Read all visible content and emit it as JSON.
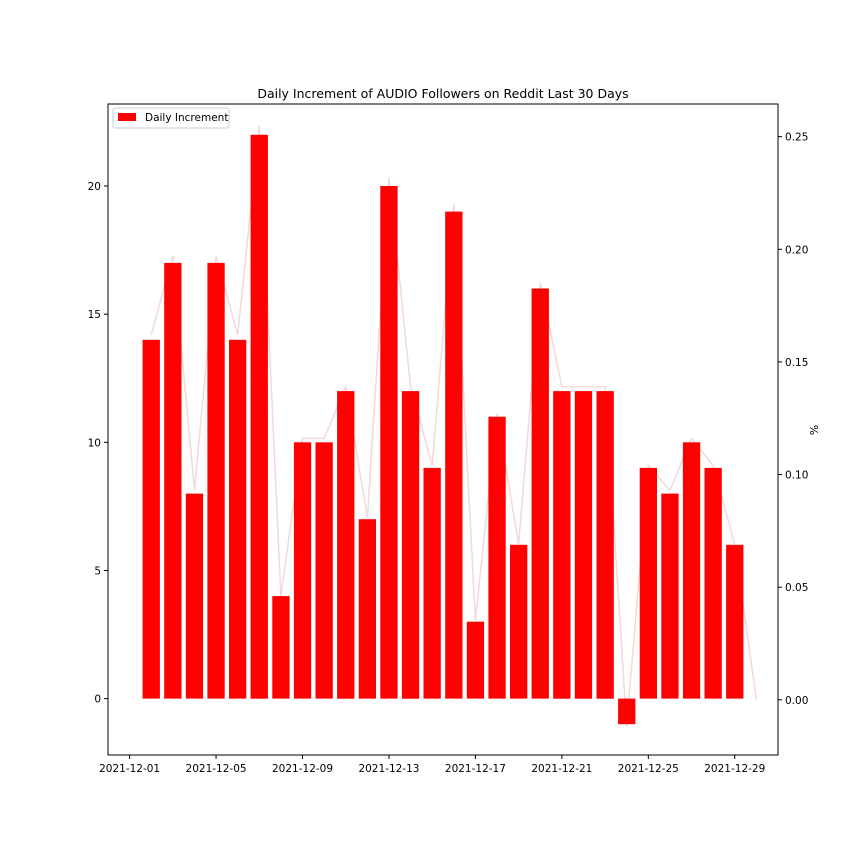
{
  "chart_data": {
    "type": "bar",
    "title": "Daily Increment of AUDIO Followers on Reddit Last 30 Days",
    "xlabel": "",
    "ylabel": "",
    "y2label": "%",
    "legend": {
      "placement": "top-left",
      "entries": [
        "Daily Increment"
      ]
    },
    "grid": false,
    "x_range": [
      "2021-11-30",
      "2021-12-31"
    ],
    "ylim": [
      -2.2,
      23.2
    ],
    "y2lim": [
      -0.0245,
      0.2645
    ],
    "yticks": [
      0,
      5,
      10,
      15,
      20
    ],
    "y2ticks": [
      "0.00",
      "0.05",
      "0.10",
      "0.15",
      "0.20",
      "0.25"
    ],
    "xticks": [
      "2021-12-01",
      "2021-12-05",
      "2021-12-09",
      "2021-12-13",
      "2021-12-17",
      "2021-12-21",
      "2021-12-25",
      "2021-12-29"
    ],
    "series": [
      {
        "name": "Daily Increment",
        "kind": "bar",
        "color": "#ff0000",
        "x": [
          "2021-12-02",
          "2021-12-03",
          "2021-12-04",
          "2021-12-05",
          "2021-12-06",
          "2021-12-07",
          "2021-12-08",
          "2021-12-09",
          "2021-12-10",
          "2021-12-11",
          "2021-12-12",
          "2021-12-13",
          "2021-12-14",
          "2021-12-15",
          "2021-12-16",
          "2021-12-17",
          "2021-12-18",
          "2021-12-19",
          "2021-12-20",
          "2021-12-21",
          "2021-12-22",
          "2021-12-23",
          "2021-12-24",
          "2021-12-25",
          "2021-12-26",
          "2021-12-27",
          "2021-12-28",
          "2021-12-29"
        ],
        "values": [
          14,
          17,
          8,
          17,
          14,
          22,
          4,
          10,
          10,
          12,
          7,
          20,
          12,
          9,
          19,
          3,
          11,
          6,
          16,
          12,
          12,
          12,
          -1,
          9,
          8,
          10,
          9,
          6
        ]
      },
      {
        "kind": "line",
        "axis": "right",
        "color": "#f2dada",
        "x": [
          "2021-12-02",
          "2021-12-03",
          "2021-12-04",
          "2021-12-05",
          "2021-12-06",
          "2021-12-07",
          "2021-12-08",
          "2021-12-09",
          "2021-12-10",
          "2021-12-11",
          "2021-12-12",
          "2021-12-13",
          "2021-12-14",
          "2021-12-15",
          "2021-12-16",
          "2021-12-17",
          "2021-12-18",
          "2021-12-19",
          "2021-12-20",
          "2021-12-21",
          "2021-12-22",
          "2021-12-23",
          "2021-12-24",
          "2021-12-25",
          "2021-12-26",
          "2021-12-27",
          "2021-12-28",
          "2021-12-29",
          "2021-12-30"
        ],
        "values": [
          0.162,
          0.197,
          0.093,
          0.197,
          0.162,
          0.255,
          0.046,
          0.116,
          0.116,
          0.139,
          0.081,
          0.232,
          0.139,
          0.104,
          0.22,
          0.035,
          0.127,
          0.069,
          0.185,
          0.139,
          0.139,
          0.139,
          -0.012,
          0.104,
          0.093,
          0.116,
          0.104,
          0.069,
          0.0
        ]
      }
    ]
  }
}
